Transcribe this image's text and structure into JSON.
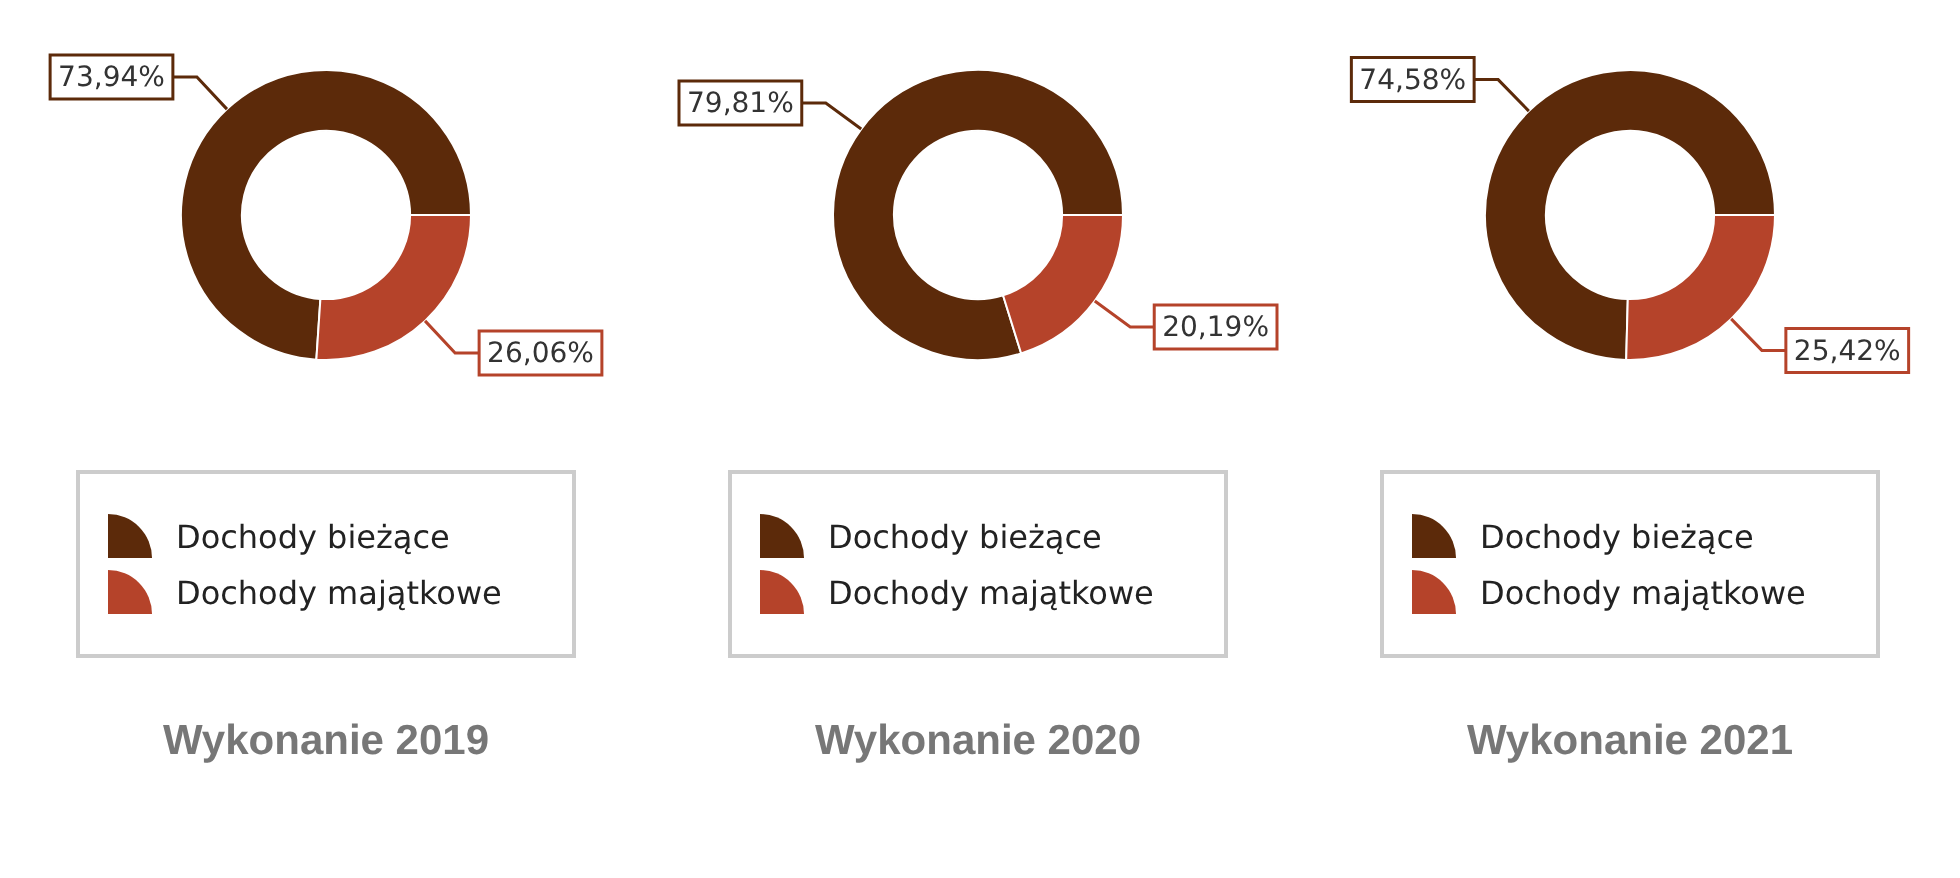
{
  "chart_data": [
    {
      "type": "donut",
      "title": "Wykonanie 2019",
      "categories": [
        "Dochody bieżące",
        "Dochody majątkowe"
      ],
      "values": [
        73.94,
        26.06
      ],
      "colors": [
        "#5c2a0a",
        "#b5432a"
      ],
      "value_labels": [
        "73,94%",
        "26,06%"
      ],
      "legend": "bottom"
    },
    {
      "type": "donut",
      "title": "Wykonanie 2020",
      "categories": [
        "Dochody bieżące",
        "Dochody majątkowe"
      ],
      "values": [
        79.81,
        20.19
      ],
      "colors": [
        "#5c2a0a",
        "#b5432a"
      ],
      "value_labels": [
        "79,81%",
        "20,19%"
      ],
      "legend": "bottom"
    },
    {
      "type": "donut",
      "title": "Wykonanie 2021",
      "categories": [
        "Dochody bieżące",
        "Dochody majątkowe"
      ],
      "values": [
        74.58,
        25.42
      ],
      "colors": [
        "#5c2a0a",
        "#b5432a"
      ],
      "value_labels": [
        "74,58%",
        "25,42%"
      ],
      "legend": "bottom"
    }
  ]
}
